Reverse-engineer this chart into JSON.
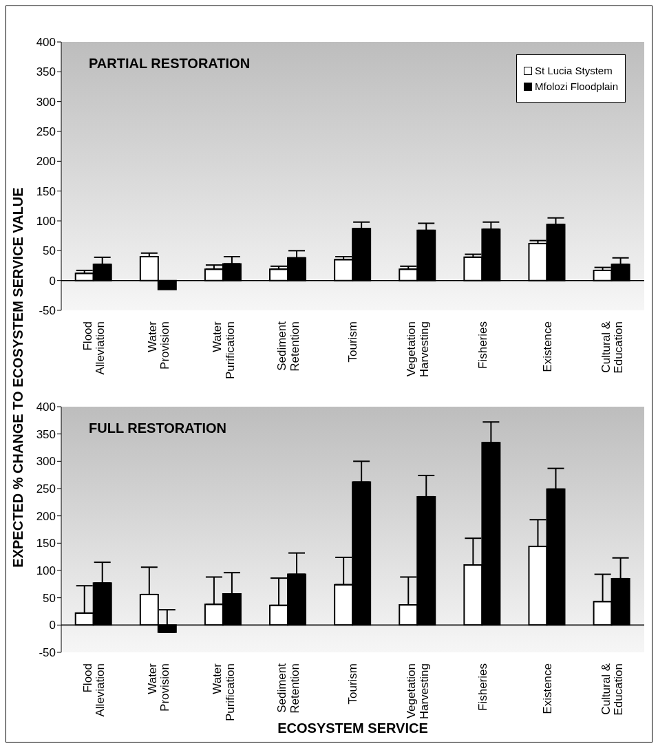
{
  "chart_data": [
    {
      "type": "bar",
      "title": "PARTIAL RESTORATION",
      "ylabel": "EXPECTED % CHANGE TO ECOSYSTEM SERVICE VALUE",
      "categories": [
        "Flood Alleviation",
        "Water Provision",
        "Water Purification",
        "Sediment Retention",
        "Tourism",
        "Vegetation Harvesting",
        "Fisheries",
        "Existence",
        "Cultural & Education"
      ],
      "series": [
        {
          "name": "St Lucia Stystem",
          "color": "#ffffff",
          "values": [
            12,
            40,
            19,
            19,
            35,
            19,
            39,
            62,
            17
          ],
          "errors": [
            [
              12,
              17
            ],
            [
              40,
              46
            ],
            [
              19,
              26
            ],
            [
              19,
              24
            ],
            [
              35,
              40
            ],
            [
              19,
              24
            ],
            [
              39,
              44
            ],
            [
              62,
              67
            ],
            [
              17,
              22
            ]
          ]
        },
        {
          "name": "Mfolozi Floodplain",
          "color": "#000000",
          "values": [
            27,
            -15,
            28,
            38,
            87,
            84,
            86,
            94,
            27
          ],
          "errors": [
            [
              27,
              39
            ],
            null,
            [
              28,
              40
            ],
            [
              38,
              50
            ],
            [
              87,
              98
            ],
            [
              84,
              96
            ],
            [
              86,
              98
            ],
            [
              94,
              105
            ],
            [
              27,
              38
            ]
          ]
        }
      ],
      "ylim": [
        -50,
        400
      ],
      "yticks": [
        -50,
        0,
        50,
        100,
        150,
        200,
        250,
        300,
        350,
        400
      ],
      "grid": false,
      "legend": "top right",
      "ref_lines": [
        {
          "axis": "y",
          "value": 0,
          "color": "#000000"
        }
      ]
    },
    {
      "type": "bar",
      "title": "FULL RESTORATION",
      "xlabel": "ECOSYSTEM SERVICE",
      "categories": [
        "Flood Alleviation",
        "Water Provision",
        "Water Purification",
        "Sediment Retention",
        "Tourism",
        "Vegetation Harvesting",
        "Fisheries",
        "Existence",
        "Cultural & Education"
      ],
      "series": [
        {
          "color": "#ffffff",
          "values": [
            22,
            56,
            38,
            36,
            74,
            37,
            110,
            144,
            43
          ],
          "errors": [
            [
              22,
              72
            ],
            [
              56,
              106
            ],
            [
              38,
              88
            ],
            [
              36,
              86
            ],
            [
              74,
              124
            ],
            [
              37,
              88
            ],
            [
              110,
              159
            ],
            [
              144,
              193
            ],
            [
              43,
              93
            ]
          ]
        },
        {
          "color": "#000000",
          "values": [
            77,
            -13,
            57,
            93,
            262,
            235,
            334,
            249,
            85
          ],
          "errors": [
            [
              77,
              115
            ],
            [
              -13,
              28
            ],
            [
              57,
              96
            ],
            [
              93,
              132
            ],
            [
              262,
              300
            ],
            [
              235,
              274
            ],
            [
              334,
              372
            ],
            [
              249,
              287
            ],
            [
              85,
              123
            ]
          ]
        }
      ],
      "ylim": [
        -50,
        400
      ],
      "yticks": [
        -50,
        0,
        50,
        100,
        150,
        200,
        250,
        300,
        350,
        400
      ],
      "grid": false,
      "legend": false,
      "ref_lines": [
        {
          "axis": "y",
          "value": 0,
          "color": "#000000"
        }
      ]
    }
  ]
}
